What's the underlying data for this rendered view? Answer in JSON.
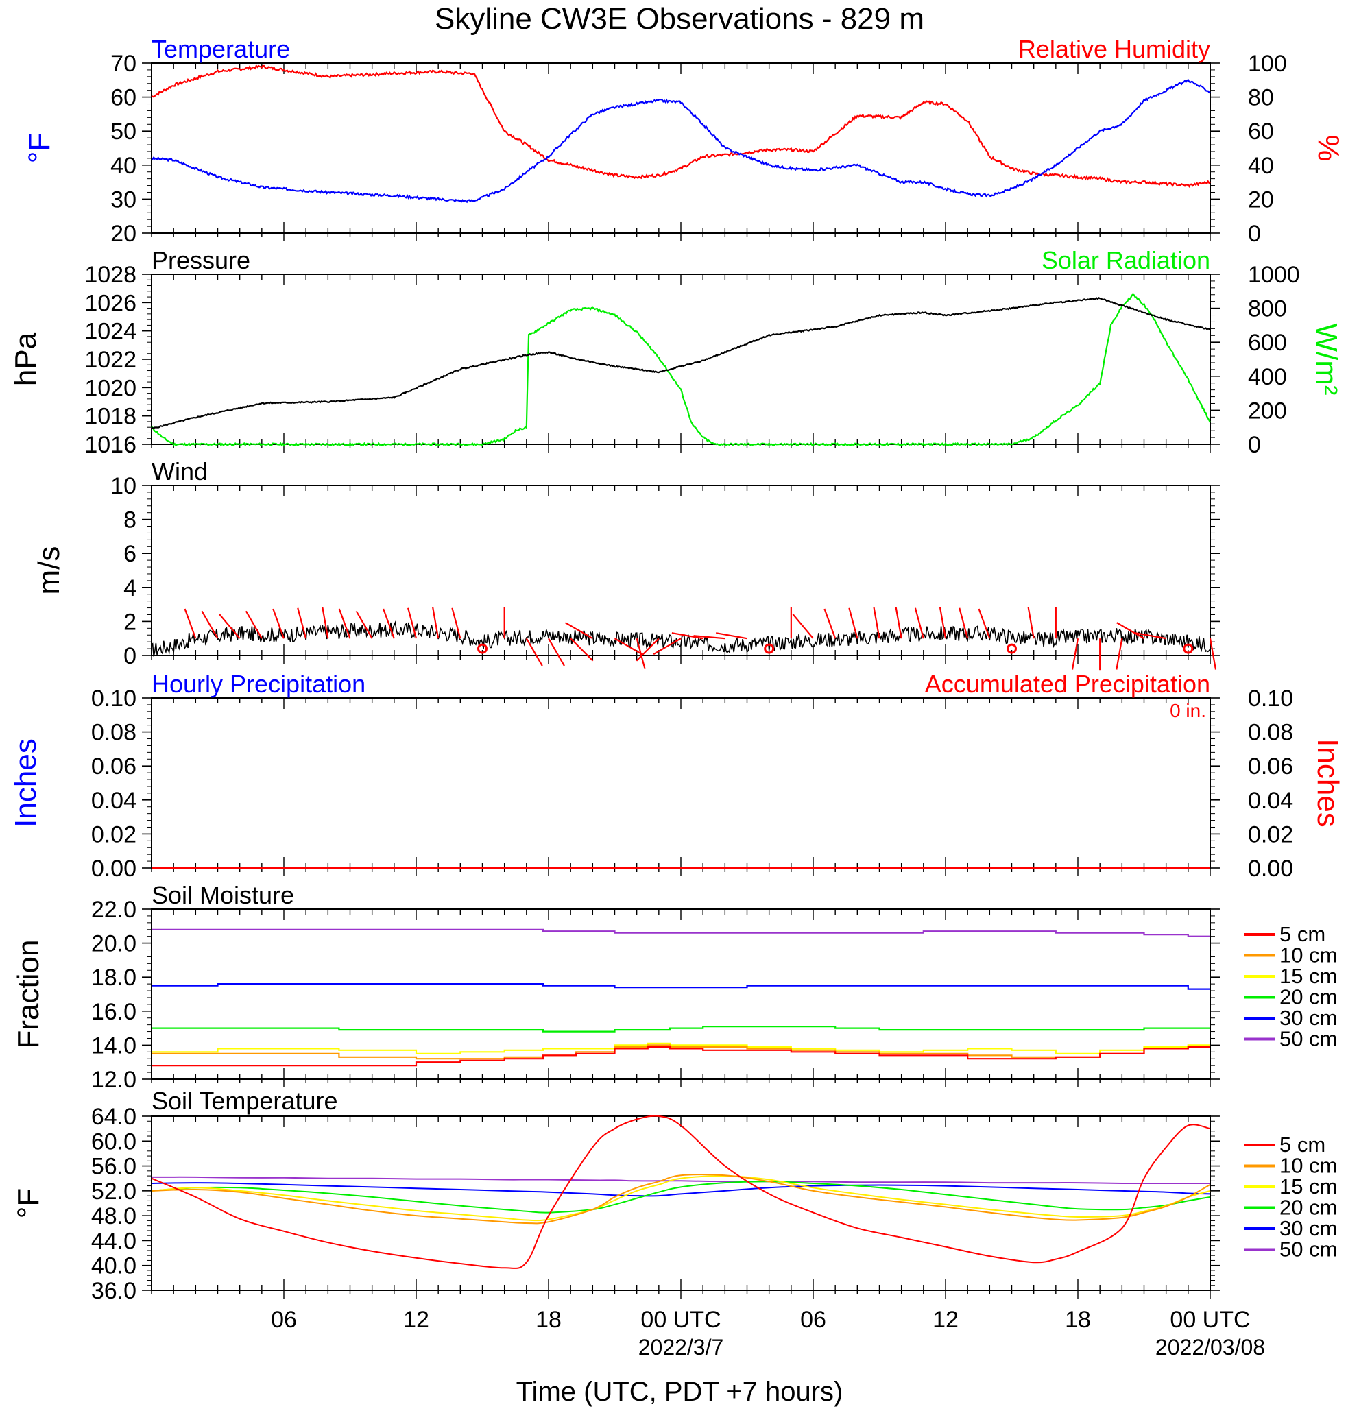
{
  "title": "Skyline CW3E Observations - 829 m",
  "x_axis": {
    "label": "Time (UTC, PDT +7 hours)",
    "tick_labels": [
      "06",
      "12",
      "18",
      "00 UTC",
      "06",
      "12",
      "18",
      "00 UTC"
    ],
    "date_labels": [
      "2022/3/7",
      "2022/03/08"
    ]
  },
  "chart_data": [
    {
      "type": "line",
      "title_left": "Temperature",
      "title_right": "Relative Humidity",
      "ylabel_left": "°F",
      "ylabel_right": "%",
      "ylim_left": [
        20,
        70
      ],
      "ylim_right": [
        0,
        100
      ],
      "yticks_left": [
        "20",
        "30",
        "40",
        "50",
        "60",
        "70"
      ],
      "yticks_right": [
        "0",
        "20",
        "40",
        "60",
        "80",
        "100"
      ],
      "x_hours": [
        1,
        2,
        4,
        6,
        9,
        12,
        14,
        15,
        15.6,
        17,
        18,
        19,
        20,
        21,
        22,
        23,
        24,
        25,
        26,
        27,
        29,
        30,
        31,
        33,
        35,
        36,
        37,
        38,
        39,
        40,
        41,
        42,
        43,
        44,
        45,
        46,
        47,
        48,
        49
      ],
      "series": [
        {
          "name": "Temperature",
          "color": "#0000ff",
          "axis": "left",
          "values": [
            42,
            41.5,
            36.5,
            33.5,
            32,
            31,
            30,
            29.5,
            29.5,
            33,
            38,
            42.5,
            49,
            55,
            57,
            58,
            59,
            58.5,
            52,
            45,
            40,
            39,
            38.5,
            40,
            35,
            35,
            33,
            31.5,
            31,
            33,
            36,
            40,
            45,
            50,
            52,
            59,
            62,
            65,
            61.5
          ]
        },
        {
          "name": "Relative Humidity",
          "color": "#ff0000",
          "axis": "right",
          "values": [
            80,
            87,
            95,
            98,
            92,
            94,
            95,
            94,
            94,
            60,
            52,
            43,
            40,
            37,
            34,
            33,
            34,
            38,
            45,
            46,
            49,
            49,
            48,
            69,
            68,
            77,
            76,
            66,
            45,
            38,
            35,
            34,
            33,
            32,
            30,
            30,
            29,
            28,
            30
          ]
        }
      ]
    },
    {
      "type": "line",
      "title_left": "Pressure",
      "title_right": "Solar Radiation",
      "ylabel_left": "hPa",
      "ylabel_right": "W/m²",
      "ylim_left": [
        1016,
        1028
      ],
      "ylim_right": [
        0,
        1000
      ],
      "yticks_left": [
        "1016",
        "1018",
        "1020",
        "1022",
        "1024",
        "1026",
        "1028"
      ],
      "yticks_right": [
        "0",
        "200",
        "400",
        "600",
        "800",
        "1000"
      ],
      "series": [
        {
          "name": "Pressure",
          "color": "#000000",
          "axis": "left",
          "x_hours": [
            1,
            3,
            6,
            9,
            12,
            15,
            18,
            19,
            20,
            22,
            24,
            26,
            29,
            32,
            34,
            36,
            37,
            40,
            42,
            44,
            47,
            49
          ],
          "values": [
            1017.1,
            1017.9,
            1018.9,
            1019,
            1019.3,
            1021.3,
            1022.3,
            1022.5,
            1022.1,
            1021.5,
            1021.1,
            1021.9,
            1023.7,
            1024.3,
            1025.1,
            1025.3,
            1025.1,
            1025.6,
            1026,
            1026.3,
            1024.8,
            1024.1
          ]
        },
        {
          "name": "Solar Radiation",
          "color": "#00ff00",
          "axis": "right",
          "x_hours": [
            1,
            1.5,
            2,
            16,
            17,
            17.5,
            18,
            18.1,
            20,
            21,
            22,
            23,
            24,
            25,
            25.5,
            26,
            26.5,
            40,
            41,
            42,
            43,
            44,
            44.5,
            45,
            45.5,
            46,
            46.5,
            47,
            48,
            49
          ],
          "values": [
            100,
            40,
            0,
            0,
            30,
            80,
            100,
            640,
            790,
            800,
            760,
            660,
            510,
            320,
            120,
            40,
            0,
            0,
            40,
            140,
            230,
            360,
            700,
            810,
            880,
            820,
            730,
            600,
            380,
            130
          ]
        }
      ]
    },
    {
      "type": "line",
      "title_left": "Wind",
      "ylabel_left": "m/s",
      "ylim_left": [
        0,
        10
      ],
      "yticks_left": [
        "0",
        "2",
        "4",
        "6",
        "8",
        "10"
      ],
      "series": [
        {
          "name": "Wind",
          "color": "#000000",
          "x_hours": [
            1,
            2,
            3,
            5,
            7,
            9,
            11,
            13,
            15,
            16,
            17,
            19,
            21,
            23,
            25,
            27,
            29,
            31,
            33,
            35,
            37,
            39,
            41,
            43,
            45,
            47,
            49
          ],
          "values": [
            0.3,
            0.6,
            1.0,
            1.3,
            1.2,
            1.4,
            1.5,
            1.5,
            1.2,
            0.8,
            1.0,
            1.2,
            1.0,
            0.9,
            0.8,
            0.6,
            0.7,
            0.9,
            1.0,
            1.2,
            1.3,
            1.3,
            0.9,
            1.1,
            1.2,
            1.0,
            0.6
          ]
        },
        {
          "name": "Wind barbs",
          "color": "#ff0000",
          "x_hours": [
            3,
            4,
            5,
            6,
            7,
            8,
            9,
            10,
            11,
            12,
            13,
            14,
            15,
            16,
            17,
            18,
            19,
            20,
            21,
            22,
            23,
            24,
            25,
            26,
            27,
            28,
            29,
            30,
            31,
            32,
            33,
            34,
            35,
            36,
            37,
            38,
            39,
            40,
            41,
            42,
            43,
            44,
            45,
            46,
            47,
            48,
            49
          ],
          "direction_deg": [
            340,
            330,
            320,
            330,
            340,
            345,
            350,
            340,
            330,
            340,
            345,
            350,
            345,
            340,
            0,
            150,
            150,
            135,
            300,
            120,
            165,
            225,
            240,
            280,
            275,
            280,
            340,
            0,
            320,
            340,
            345,
            350,
            350,
            345,
            350,
            345,
            340,
            335,
            350,
            0,
            190,
            180,
            190,
            300,
            280,
            280,
            170
          ],
          "calm_hours": [
            16,
            29,
            40,
            48
          ]
        }
      ]
    },
    {
      "type": "line",
      "title_left": "Hourly Precipitation",
      "title_right": "Accumulated Precipitation",
      "annotation": "0 in.",
      "ylabel_left": "Inches",
      "ylabel_right": "Inches",
      "ylim_left": [
        0,
        0.1
      ],
      "ylim_right": [
        0,
        0.1
      ],
      "yticks_left": [
        "0.00",
        "0.02",
        "0.04",
        "0.06",
        "0.08",
        "0.10"
      ],
      "yticks_right": [
        "0.00",
        "0.02",
        "0.04",
        "0.06",
        "0.08",
        "0.10"
      ],
      "series": [
        {
          "name": "Hourly Precipitation",
          "color": "#0000ff",
          "x_hours": [
            1,
            49
          ],
          "values": [
            0,
            0
          ]
        },
        {
          "name": "Accumulated Precipitation",
          "color": "#ff0000",
          "x_hours": [
            1,
            49
          ],
          "values": [
            0,
            0
          ]
        }
      ]
    },
    {
      "type": "line",
      "title_left": "Soil Moisture",
      "ylabel_left": "Fraction",
      "ylim_left": [
        12,
        22
      ],
      "yticks_left": [
        "12.0",
        "14.0",
        "16.0",
        "18.0",
        "20.0",
        "22.0"
      ],
      "x_hours": [
        1,
        7,
        12,
        14,
        16,
        18,
        19.5,
        21,
        23,
        24,
        25,
        27,
        29,
        31,
        33,
        35,
        37,
        39,
        41,
        43,
        45,
        47,
        49
      ],
      "series": [
        {
          "name": "5 cm",
          "color": "#ff0000",
          "values": [
            12.8,
            12.8,
            12.8,
            13.0,
            13.1,
            13.2,
            13.4,
            13.5,
            13.8,
            13.9,
            13.8,
            13.7,
            13.7,
            13.6,
            13.5,
            13.4,
            13.4,
            13.2,
            13.2,
            13.3,
            13.5,
            13.8,
            13.9
          ]
        },
        {
          "name": "10 cm",
          "color": "#ff9900",
          "values": [
            13.5,
            13.5,
            13.3,
            13.2,
            13.2,
            13.3,
            13.4,
            13.6,
            13.9,
            14.0,
            13.9,
            13.9,
            13.8,
            13.7,
            13.6,
            13.5,
            13.5,
            13.4,
            13.3,
            13.3,
            13.5,
            13.8,
            13.9
          ]
        },
        {
          "name": "15 cm",
          "color": "#ffff00",
          "values": [
            13.6,
            13.8,
            13.7,
            13.5,
            13.6,
            13.7,
            13.8,
            13.8,
            14.0,
            14.1,
            14.0,
            14.0,
            13.9,
            13.8,
            13.7,
            13.6,
            13.7,
            13.8,
            13.7,
            13.5,
            13.7,
            13.9,
            14.0
          ]
        },
        {
          "name": "20 cm",
          "color": "#00ee00",
          "values": [
            15,
            15,
            14.9,
            14.9,
            14.9,
            14.9,
            14.8,
            14.8,
            14.9,
            14.9,
            15.0,
            15.1,
            15.1,
            15.1,
            15.0,
            14.9,
            14.9,
            14.9,
            14.9,
            14.9,
            14.9,
            15.0,
            15.0
          ]
        },
        {
          "name": "30 cm",
          "color": "#0000ff",
          "values": [
            17.5,
            17.6,
            17.6,
            17.6,
            17.6,
            17.6,
            17.5,
            17.5,
            17.4,
            17.4,
            17.4,
            17.4,
            17.5,
            17.5,
            17.5,
            17.5,
            17.5,
            17.5,
            17.5,
            17.5,
            17.5,
            17.5,
            17.3
          ]
        },
        {
          "name": "50 cm",
          "color": "#9933cc",
          "values": [
            20.8,
            20.8,
            20.8,
            20.8,
            20.8,
            20.8,
            20.7,
            20.7,
            20.6,
            20.6,
            20.6,
            20.6,
            20.6,
            20.6,
            20.6,
            20.6,
            20.7,
            20.7,
            20.7,
            20.6,
            20.6,
            20.5,
            20.4
          ]
        }
      ]
    },
    {
      "type": "line",
      "title_left": "Soil Temperature",
      "ylabel_left": "°F",
      "ylim_left": [
        36,
        64
      ],
      "yticks_left": [
        "36.0",
        "40.0",
        "44.0",
        "48.0",
        "52.0",
        "56.0",
        "60.0",
        "64.0"
      ],
      "x_hours": [
        1,
        3,
        5,
        7,
        9,
        11,
        13,
        15,
        17,
        18,
        19,
        21,
        22,
        23,
        24,
        25,
        27,
        29,
        31,
        33,
        35,
        37,
        39,
        41,
        42,
        43,
        45,
        46,
        47,
        48,
        49
      ],
      "series": [
        {
          "name": "5 cm",
          "color": "#ff0000",
          "values": [
            54,
            51,
            47.5,
            45.5,
            43.7,
            42.3,
            41.2,
            40.3,
            39.6,
            40.5,
            48,
            59,
            62,
            63.5,
            64,
            62.5,
            56,
            51.5,
            48.5,
            46,
            44.5,
            43,
            41.5,
            40.5,
            41,
            42.2,
            46,
            54,
            59,
            62.5,
            62
          ]
        },
        {
          "name": "10 cm",
          "color": "#ff9900",
          "values": [
            52,
            52.2,
            51.8,
            50.8,
            49.8,
            48.8,
            48.0,
            47.5,
            47.0,
            46.8,
            47.0,
            49,
            51,
            52.5,
            53.5,
            54.5,
            54.5,
            53.5,
            52,
            51,
            50.2,
            49.4,
            48.5,
            47.7,
            47.4,
            47.3,
            47.7,
            48.5,
            49.5,
            51,
            53
          ]
        },
        {
          "name": "15 cm",
          "color": "#ffee00",
          "values": [
            52,
            52.5,
            52.0,
            51.3,
            50.4,
            49.6,
            48.8,
            48.2,
            47.6,
            47.3,
            47.4,
            49,
            50.5,
            52,
            53,
            54,
            54.4,
            53.8,
            52.5,
            51.5,
            50.6,
            49.8,
            49.0,
            48.3,
            48.0,
            47.8,
            48.0,
            48.7,
            49.6,
            51,
            52
          ]
        },
        {
          "name": "20 cm",
          "color": "#00ee00",
          "values": [
            52,
            52.5,
            52.5,
            52.1,
            51.6,
            51.0,
            50.3,
            49.6,
            49.0,
            48.7,
            48.5,
            49,
            49.8,
            50.8,
            51.8,
            52.6,
            53.3,
            53.5,
            53.2,
            52.8,
            52.2,
            51.4,
            50.6,
            49.8,
            49.4,
            49.1,
            49.0,
            49.3,
            49.7,
            50.4,
            51
          ]
        },
        {
          "name": "30 cm",
          "color": "#0000ff",
          "values": [
            53.2,
            53.3,
            53.2,
            53.0,
            52.8,
            52.6,
            52.4,
            52.2,
            52.0,
            51.9,
            51.8,
            51.5,
            51.3,
            51.2,
            51.2,
            51.5,
            52.0,
            52.5,
            52.8,
            52.9,
            52.9,
            52.8,
            52.6,
            52.4,
            52.3,
            52.2,
            52.0,
            51.9,
            51.8,
            51.6,
            51.5
          ]
        },
        {
          "name": "50 cm",
          "color": "#9933cc",
          "values": [
            54.2,
            54.2,
            54.1,
            54.1,
            54.0,
            54.0,
            53.9,
            53.9,
            53.8,
            53.8,
            53.8,
            53.7,
            53.7,
            53.6,
            53.6,
            53.6,
            53.5,
            53.5,
            53.5,
            53.4,
            53.4,
            53.4,
            53.3,
            53.3,
            53.3,
            53.3,
            53.2,
            53.2,
            53.2,
            53.2,
            53.2
          ]
        }
      ]
    }
  ],
  "legend": {
    "placement": "right",
    "items": [
      "5 cm",
      "10 cm",
      "15 cm",
      "20 cm",
      "30 cm",
      "50 cm"
    ],
    "colors": [
      "#ff0000",
      "#ff9900",
      "#ffff00",
      "#00ee00",
      "#0000ff",
      "#9933cc"
    ]
  }
}
